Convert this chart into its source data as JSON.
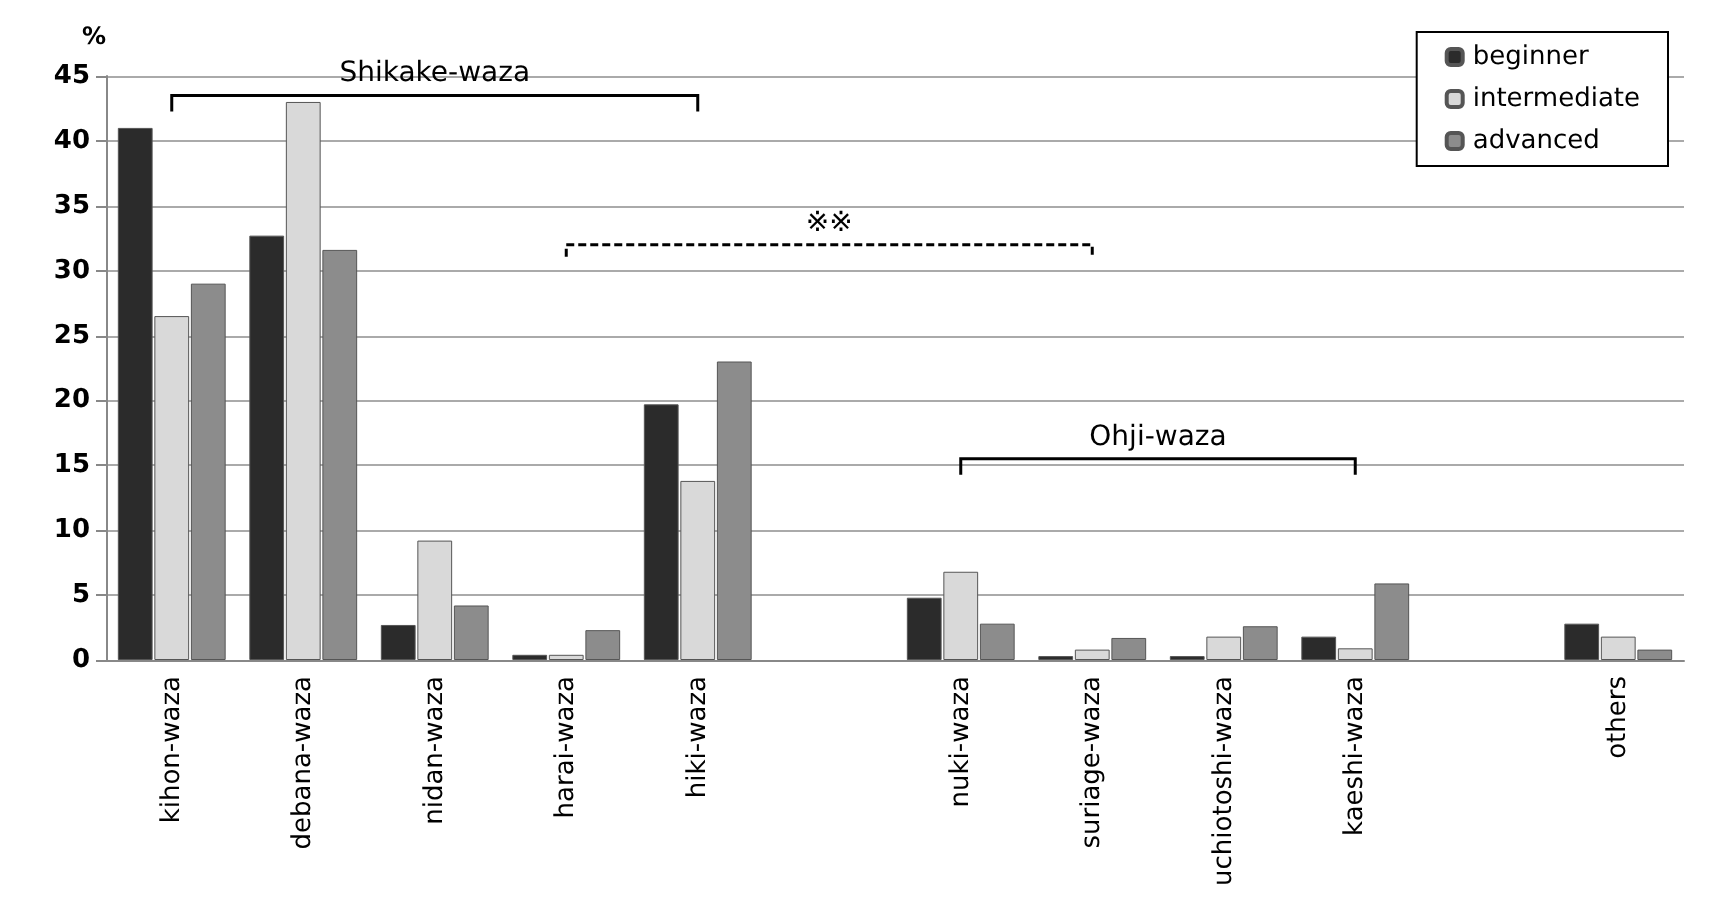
{
  "chart_data": {
    "type": "bar",
    "ylabel": "%",
    "categories": [
      "kihon-waza",
      "debana-waza",
      "nidan-waza",
      "harai-waza",
      "hiki-waza",
      null,
      "nuki-waza",
      "suriage-waza",
      "uchiotoshi-waza",
      "kaeshi-waza",
      null,
      "others"
    ],
    "series": [
      {
        "name": "beginner",
        "color": "#2b2b2b",
        "values": [
          41,
          32.7,
          2.7,
          0.4,
          19.7,
          null,
          4.8,
          0.3,
          0.3,
          1.8,
          null,
          2.8
        ]
      },
      {
        "name": "intermediate",
        "color": "#d9d9d9",
        "values": [
          26.5,
          43,
          9.2,
          0.4,
          13.8,
          null,
          6.8,
          0.8,
          1.8,
          0.9,
          null,
          1.8
        ]
      },
      {
        "name": "advanced",
        "color": "#8c8c8c",
        "values": [
          29,
          31.6,
          4.2,
          2.3,
          23,
          null,
          2.8,
          1.7,
          2.6,
          5.9,
          null,
          0.8
        ]
      }
    ],
    "annotations": [
      "Shikake-waza",
      "※※",
      "Ohji-waza"
    ],
    "ylim": [
      0,
      45
    ],
    "yticks": [
      0,
      5,
      10,
      15,
      20,
      25,
      30,
      35,
      40,
      45
    ],
    "grid": "y",
    "legend": "top right"
  }
}
